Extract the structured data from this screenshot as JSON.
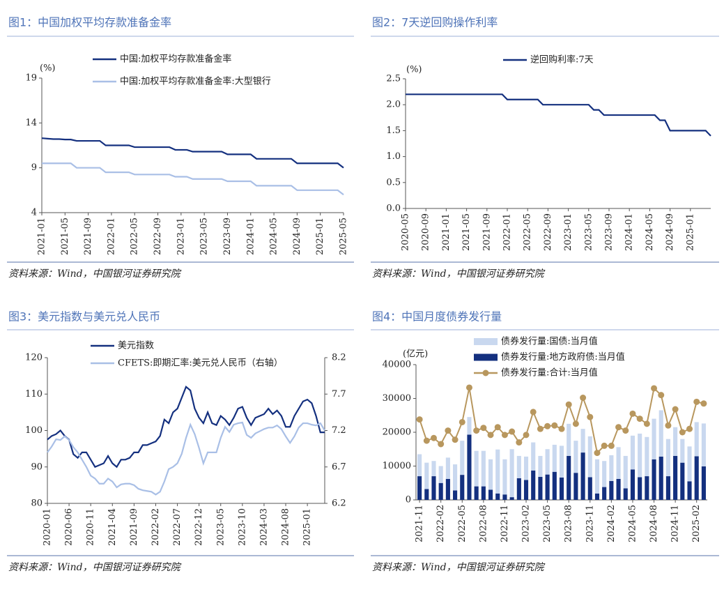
{
  "chart_data": [
    {
      "type": "line",
      "title": "图1：中国加权平均存款准备金率",
      "source": "资料来源：Wind，中国银河证券研究院",
      "unit": "(%)",
      "categories": [
        "2021-01",
        null,
        null,
        null,
        "2021-05",
        null,
        null,
        null,
        "2021-09",
        null,
        null,
        null,
        "2022-01",
        null,
        null,
        null,
        "2022-05",
        null,
        null,
        null,
        "2022-09",
        null,
        null,
        null,
        "2023-01",
        null,
        null,
        null,
        "2023-05",
        null,
        null,
        null,
        "2023-09",
        null,
        null,
        null,
        "2024-01",
        null,
        null,
        null,
        "2024-05",
        null,
        null,
        null,
        "2024-09",
        null,
        null,
        null,
        "2025-01",
        null,
        null,
        null,
        "2025-05"
      ],
      "series": [
        {
          "name": "中国:加权平均存款准备金率",
          "color": "#14307f",
          "values": [
            12.3,
            12.25,
            12.2,
            12.2,
            12.15,
            12.15,
            12.0,
            12.0,
            12.0,
            12.0,
            12.0,
            11.5,
            11.5,
            11.5,
            11.5,
            11.5,
            11.3,
            11.3,
            11.3,
            11.3,
            11.3,
            11.3,
            11.3,
            11.0,
            11.0,
            11.0,
            10.8,
            10.8,
            10.8,
            10.8,
            10.8,
            10.8,
            10.5,
            10.5,
            10.5,
            10.5,
            10.5,
            10.0,
            10.0,
            10.0,
            10.0,
            10.0,
            10.0,
            10.0,
            9.5,
            9.5,
            9.5,
            9.5,
            9.5,
            9.5,
            9.5,
            9.5,
            9.0
          ]
        },
        {
          "name": "中国:加权平均存款准备金率:大型银行",
          "color": "#a9bfe6",
          "values": [
            9.5,
            9.5,
            9.5,
            9.5,
            9.5,
            9.5,
            9.0,
            9.0,
            9.0,
            9.0,
            9.0,
            8.5,
            8.5,
            8.5,
            8.5,
            8.5,
            8.25,
            8.25,
            8.25,
            8.25,
            8.25,
            8.25,
            8.25,
            8.0,
            8.0,
            8.0,
            7.75,
            7.75,
            7.75,
            7.75,
            7.75,
            7.75,
            7.5,
            7.5,
            7.5,
            7.5,
            7.5,
            7.0,
            7.0,
            7.0,
            7.0,
            7.0,
            7.0,
            7.0,
            6.5,
            6.5,
            6.5,
            6.5,
            6.5,
            6.5,
            6.5,
            6.5,
            6.0
          ]
        }
      ],
      "ylim": [
        4,
        19
      ],
      "yticks": [
        4,
        9,
        14,
        19
      ]
    },
    {
      "type": "line",
      "title": "图2：7天逆回购操作利率",
      "source": "资料来源：Wind，中国银河证券研究院",
      "unit": "(%)",
      "categories": [
        "2020-05",
        null,
        null,
        null,
        "2020-09",
        null,
        null,
        null,
        "2021-01",
        null,
        null,
        null,
        "2021-05",
        null,
        null,
        null,
        "2021-09",
        null,
        null,
        null,
        "2022-01",
        null,
        null,
        null,
        "2022-05",
        null,
        null,
        null,
        "2022-09",
        null,
        null,
        null,
        "2023-01",
        null,
        null,
        null,
        "2023-05",
        null,
        null,
        null,
        "2023-09",
        null,
        null,
        null,
        "2024-01",
        null,
        null,
        null,
        "2024-05",
        null,
        null,
        null,
        "2024-09",
        null,
        null,
        null,
        "2025-01",
        null,
        null,
        null,
        null
      ],
      "series": [
        {
          "name": "逆回购利率:7天",
          "color": "#14307f",
          "values": [
            2.2,
            2.2,
            2.2,
            2.2,
            2.2,
            2.2,
            2.2,
            2.2,
            2.2,
            2.2,
            2.2,
            2.2,
            2.2,
            2.2,
            2.2,
            2.2,
            2.2,
            2.2,
            2.2,
            2.2,
            2.1,
            2.1,
            2.1,
            2.1,
            2.1,
            2.1,
            2.1,
            2.0,
            2.0,
            2.0,
            2.0,
            2.0,
            2.0,
            2.0,
            2.0,
            2.0,
            2.0,
            1.9,
            1.9,
            1.8,
            1.8,
            1.8,
            1.8,
            1.8,
            1.8,
            1.8,
            1.8,
            1.8,
            1.8,
            1.8,
            1.7,
            1.7,
            1.5,
            1.5,
            1.5,
            1.5,
            1.5,
            1.5,
            1.5,
            1.5,
            1.4
          ]
        }
      ],
      "ylim": [
        0,
        2.5
      ],
      "yticks": [
        {
          "value": 0,
          "label": "0.0"
        },
        0.5,
        {
          "value": 1,
          "label": "1.0"
        },
        1.5,
        {
          "value": 2,
          "label": "2.0"
        },
        2.5
      ]
    },
    {
      "type": "line",
      "title": "图3：美元指数与美元兑人民币",
      "source": "资料来源：Wind，中国银河证券研究院",
      "categories": [
        "2020-01",
        null,
        null,
        null,
        null,
        "2020-06",
        null,
        null,
        null,
        null,
        "2020-11",
        null,
        null,
        null,
        null,
        "2021-04",
        null,
        null,
        null,
        null,
        "2021-09",
        null,
        null,
        null,
        null,
        "2022-02",
        null,
        null,
        null,
        null,
        "2022-07",
        null,
        null,
        null,
        null,
        "2022-12",
        null,
        null,
        null,
        null,
        "2023-05",
        null,
        null,
        null,
        null,
        "2023-10",
        null,
        null,
        null,
        null,
        "2024-03",
        null,
        null,
        null,
        null,
        "2024-08",
        null,
        null,
        null,
        null,
        "2025-01",
        null,
        null,
        null,
        null
      ],
      "series": [
        {
          "name": "美元指数",
          "color": "#14307f",
          "values": [
            97.5,
            98.5,
            99,
            100,
            98.5,
            97.5,
            93.5,
            92.5,
            94,
            94,
            92,
            90,
            90.5,
            91,
            93,
            91,
            90,
            92,
            92,
            92.5,
            94,
            94,
            96,
            96,
            96.5,
            97,
            98.5,
            103,
            102,
            105,
            106,
            109,
            112,
            111,
            106,
            103.5,
            102,
            105,
            102,
            101.5,
            104,
            103,
            101.5,
            103.5,
            106,
            106.5,
            103.5,
            101.5,
            103.5,
            104,
            104.5,
            106,
            104.5,
            105.5,
            104,
            101,
            101,
            104,
            106,
            108,
            108.5,
            107.5,
            104,
            99.5,
            99.5
          ]
        },
        {
          "name": "CFETS:即期汇率:美元兑人民币（右轴）",
          "color": "#a9bfe6",
          "axis": "y2",
          "values": [
            6.9,
            6.98,
            7.08,
            7.07,
            7.12,
            7.07,
            6.97,
            6.9,
            6.8,
            6.7,
            6.58,
            6.54,
            6.47,
            6.47,
            6.54,
            6.5,
            6.42,
            6.46,
            6.47,
            6.47,
            6.45,
            6.4,
            6.38,
            6.37,
            6.36,
            6.32,
            6.36,
            6.5,
            6.67,
            6.7,
            6.75,
            6.88,
            7.1,
            7.28,
            7.15,
            6.96,
            6.75,
            6.9,
            6.9,
            6.9,
            7.1,
            7.25,
            7.18,
            7.28,
            7.3,
            7.31,
            7.14,
            7.1,
            7.16,
            7.19,
            7.22,
            7.24,
            7.24,
            7.27,
            7.22,
            7.12,
            7.03,
            7.12,
            7.24,
            7.3,
            7.3,
            7.28,
            7.27,
            7.3,
            7.2
          ]
        }
      ],
      "ylim": [
        80,
        120
      ],
      "yticks": [
        80,
        90,
        100,
        110,
        120
      ],
      "y2lim": [
        6.2,
        8.2
      ],
      "y2ticks": [
        6.2,
        6.7,
        7.2,
        7.7,
        8.2
      ]
    },
    {
      "type": "bar",
      "stacked": true,
      "title": "图4：中国月度债券发行量",
      "source": "资料来源：Wind，中国银河证券研究院",
      "unit": "(亿元)",
      "categories": [
        "2021-11",
        null,
        null,
        "2022-02",
        null,
        null,
        "2022-05",
        null,
        null,
        "2022-08",
        null,
        null,
        "2022-11",
        null,
        null,
        "2023-02",
        null,
        null,
        "2023-05",
        null,
        null,
        "2023-08",
        null,
        null,
        "2023-11",
        null,
        null,
        "2024-02",
        null,
        null,
        "2024-05",
        null,
        null,
        "2024-08",
        null,
        null,
        "2024-11",
        null,
        null,
        "2025-02",
        null
      ],
      "series": [
        {
          "name": "债券发行量:国债:当月值",
          "type": "bar",
          "color": "#c9d8ef",
          "values": [
            6500,
            7800,
            4500,
            5000,
            6300,
            7700,
            10100,
            5200,
            10500,
            10500,
            9000,
            13000,
            10400,
            14200,
            6600,
            6900,
            8300,
            6200,
            7500,
            8000,
            9400,
            9500,
            9500,
            7000,
            12100,
            10100,
            7700,
            7600,
            9400,
            9600,
            10000,
            12900,
            11600,
            12000,
            13700,
            11000,
            8500,
            7000,
            10300,
            10100,
            12700
          ]
        },
        {
          "name": "债券发行量:地方政府债:当月值",
          "type": "bar",
          "color": "#14307f",
          "values": [
            7000,
            3200,
            7000,
            5000,
            6200,
            2800,
            7400,
            19300,
            4000,
            4000,
            3000,
            1900,
            1600,
            800,
            6400,
            5900,
            8700,
            6800,
            7500,
            8300,
            6600,
            13000,
            8000,
            14000,
            6700,
            1900,
            3800,
            5600,
            6200,
            3400,
            9000,
            6700,
            7000,
            12000,
            12800,
            7000,
            13000,
            11000,
            5500,
            12900,
            9900
          ]
        },
        {
          "name": "债券发行量:合计:当月值",
          "type": "line",
          "color": "#b8975e",
          "values": [
            23800,
            17500,
            18300,
            16500,
            20500,
            17800,
            23000,
            33200,
            20500,
            21300,
            19200,
            21500,
            19200,
            20200,
            17000,
            19200,
            26000,
            21000,
            21800,
            22000,
            21000,
            28200,
            22500,
            30200,
            24500,
            13900,
            16000,
            16000,
            21500,
            20500,
            25500,
            24000,
            22500,
            33000,
            31000,
            22000,
            26800,
            20000,
            21000,
            29000,
            28500
          ]
        }
      ],
      "ylim": [
        0,
        40000
      ],
      "yticks": [
        0,
        10000,
        20000,
        30000,
        40000
      ]
    }
  ]
}
